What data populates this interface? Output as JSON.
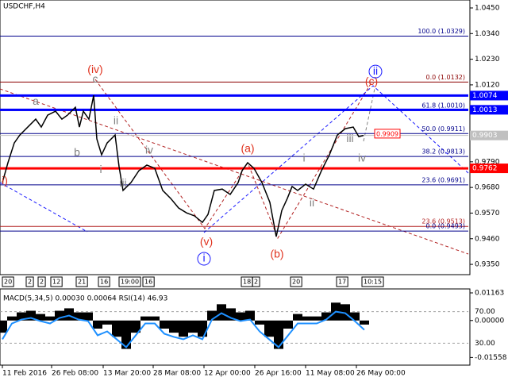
{
  "chart_data": [
    {
      "type": "line",
      "title": "USDCHF,H4",
      "x": [
        0,
        7,
        15,
        22,
        32,
        42,
        49,
        57,
        67,
        75,
        82,
        92,
        97,
        102,
        109,
        115,
        119,
        125,
        132,
        142,
        147,
        152,
        162,
        172,
        182,
        192,
        202,
        212,
        222,
        232,
        242,
        252,
        259,
        267,
        277,
        287,
        297,
        302,
        309,
        317,
        327,
        337,
        345,
        352,
        359,
        365,
        372,
        382,
        392,
        402,
        412,
        422,
        432,
        442,
        449,
        455
      ],
      "values": [
        0.9701,
        0.9786,
        0.9871,
        0.9905,
        0.9939,
        0.9973,
        0.9939,
        0.999,
        1.0007,
        0.9973,
        0.999,
        1.0024,
        0.9939,
        1.0007,
        0.9973,
        1.0075,
        0.9888,
        0.982,
        0.9871,
        0.9905,
        0.9769,
        0.9667,
        0.9701,
        0.9752,
        0.9776,
        0.9762,
        0.9667,
        0.9633,
        0.9592,
        0.9571,
        0.9558,
        0.953,
        0.9564,
        0.9667,
        0.9673,
        0.965,
        0.9701,
        0.9752,
        0.9786,
        0.9762,
        0.9701,
        0.9616,
        0.9469,
        0.9581,
        0.9633,
        0.9684,
        0.9667,
        0.9694,
        0.9673,
        0.9752,
        0.982,
        0.9905,
        0.9932,
        0.9939,
        0.9898,
        0.9903
      ],
      "color": "#000000",
      "xlim": [
        -3,
        587
      ],
      "ylim": [
        0.9306,
        1.0484
      ],
      "yticks": [
        {
          "value": 1.045,
          "label": "1.0450"
        },
        {
          "value": 1.034,
          "label": "1.0340"
        },
        {
          "value": 1.023,
          "label": "1.0230"
        },
        {
          "value": 1.012,
          "label": "1.0120"
        },
        {
          "value": 0.979,
          "label": "0.9790"
        },
        {
          "value": 0.968,
          "label": "0.9680"
        },
        {
          "value": 0.957,
          "label": "0.9570"
        },
        {
          "value": 0.946,
          "label": "0.9460"
        },
        {
          "value": 0.935,
          "label": "0.9350"
        }
      ],
      "levels": [
        {
          "value": 1.0329,
          "label": "100.0 (1.0329)",
          "color": "#00008b",
          "width": 1
        },
        {
          "value": 1.0132,
          "label": "0.0 (1.0132)",
          "color": "#8b0000",
          "width": 1
        },
        {
          "value": 1.001,
          "label": "61.8 (1.0010)",
          "color": "#00008b",
          "width": 1
        },
        {
          "value": 0.9911,
          "label": "50.0 (0.9911)",
          "color": "#00008b",
          "width": 1
        },
        {
          "value": 0.9813,
          "label": "38.2 (0.9813)",
          "color": "#00008b",
          "width": 1
        },
        {
          "value": 0.9691,
          "label": "23.6 (0.9691)",
          "color": "#00008b",
          "width": 1
        },
        {
          "value": 0.9513,
          "label": "23.6 (0.9513)",
          "color": "#b22222",
          "width": 1
        },
        {
          "value": 0.9493,
          "label": "0.0 (0.9493)",
          "color": "#00008b",
          "width": 1
        }
      ],
      "axis_levels": [
        {
          "value": 1.0074,
          "label": "1.0074",
          "color": "#0000ff",
          "width": 3
        },
        {
          "value": 1.0013,
          "label": "1.0013",
          "color": "#0000ff",
          "width": 3
        },
        {
          "value": 0.9762,
          "label": "0.9762",
          "color": "#ff0000",
          "width": 3
        }
      ],
      "bid": {
        "value": 0.9903,
        "label": "0.9903"
      },
      "ask": {
        "value": 0.9909,
        "label": "0.9909"
      },
      "annotations": [
        {
          "text": "i)",
          "x": 3,
          "y": 0.9707,
          "color": "#e0321e"
        },
        {
          "text": "a",
          "x": 42,
          "y": 1.0048,
          "color": "#808080"
        },
        {
          "text": "b",
          "x": 94,
          "y": 0.9827,
          "color": "#808080"
        },
        {
          "text": "(iv)",
          "x": 117,
          "y": 1.0184,
          "color": "#e0321e"
        },
        {
          "text": "c",
          "x": 117,
          "y": 1.0143,
          "color": "#808080"
        },
        {
          "text": "i",
          "x": 124,
          "y": 0.9755,
          "color": "#808080"
        },
        {
          "text": "ii",
          "x": 143,
          "y": 0.9963,
          "color": "#808080"
        },
        {
          "text": "iii",
          "x": 152,
          "y": 0.9697,
          "color": "#808080"
        },
        {
          "text": "iv",
          "x": 185,
          "y": 0.9837,
          "color": "#808080"
        },
        {
          "text": "(v)",
          "x": 257,
          "y": 0.9445,
          "color": "#e0321e"
        },
        {
          "text": "i",
          "x": 254,
          "y": 0.9374,
          "color": "#1a1aff",
          "circle": true
        },
        {
          "text": "(a)",
          "x": 309,
          "y": 0.9844,
          "color": "#e0321e"
        },
        {
          "text": "(b)",
          "x": 346,
          "y": 0.9391,
          "color": "#e0321e"
        },
        {
          "text": "i",
          "x": 380,
          "y": 0.9803,
          "color": "#808080"
        },
        {
          "text": "ii",
          "x": 390,
          "y": 0.9612,
          "color": "#808080"
        },
        {
          "text": "iii",
          "x": 438,
          "y": 0.9888,
          "color": "#808080"
        },
        {
          "text": "iv",
          "x": 453,
          "y": 0.9803,
          "color": "#808080"
        },
        {
          "text": "(c)",
          "x": 465,
          "y": 1.0133,
          "color": "#e0321e"
        },
        {
          "text": "ii",
          "x": 470,
          "y": 1.0177,
          "color": "#1a1aff",
          "circle": true
        }
      ],
      "period_labels": [
        "20",
        "2",
        "2",
        "12",
        "21",
        "16",
        "19:00",
        "16",
        "18",
        "2",
        "20",
        "17",
        "10:15"
      ]
    },
    {
      "type": "bar",
      "title": "MACD(5,34,5) 0.00030 0.00064 RSI(14) 46.93",
      "x": [
        0,
        12,
        24,
        36,
        48,
        60,
        72,
        84,
        96,
        108,
        120,
        132,
        144,
        156,
        168,
        180,
        192,
        204,
        216,
        228,
        240,
        252,
        264,
        276,
        288,
        300,
        312,
        324,
        336,
        348,
        360,
        372,
        384,
        396,
        408,
        420,
        432,
        444,
        456
      ],
      "values": [
        -0.00513,
        0.00171,
        0.00342,
        0.0041,
        0.00274,
        0.00171,
        0.0041,
        0.00513,
        0.00342,
        0.00342,
        -0.00342,
        -0.00171,
        -0.00684,
        -0.01197,
        -0.00513,
        0.00171,
        0.00171,
        -0.00342,
        -0.00513,
        -0.00684,
        -0.00513,
        -0.00684,
        0.0041,
        0.00684,
        0.00513,
        0.00342,
        0.0041,
        -0.00171,
        -0.00684,
        -0.01197,
        -0.00342,
        0.00274,
        0.00171,
        0.00171,
        0.00342,
        0.00752,
        0.00684,
        0.00342,
        -0.00171
      ],
      "color": "#000000",
      "series": [
        {
          "axis": "y2",
          "color": "#1e90ff",
          "values": [
            35,
            55,
            60,
            62,
            58,
            55,
            62,
            65,
            60,
            58,
            40,
            45,
            35,
            25,
            40,
            55,
            55,
            42,
            38,
            35,
            40,
            35,
            60,
            68,
            62,
            58,
            60,
            45,
            35,
            25,
            40,
            55,
            55,
            55,
            60,
            70,
            68,
            58,
            46.93
          ]
        }
      ],
      "xlim": [
        -3,
        587
      ],
      "ylim": [
        -0.0188,
        0.0133
      ],
      "yticks": [
        0.01163,
        {
          "value": 0,
          "label": "0.00000"
        },
        -0.01558
      ],
      "y2lim": [
        2.3,
        98.7
      ],
      "y2ticks": [
        {
          "value": 70,
          "label": "70.00"
        },
        {
          "value": 30,
          "label": "30.00"
        }
      ],
      "xticks": [
        {
          "value": 0,
          "label": "11 Feb 2016"
        },
        {
          "value": 62,
          "label": "26 Feb 08:00"
        },
        {
          "value": 127,
          "label": "13 Mar 20:00"
        },
        {
          "value": 190,
          "label": "28 Mar 08:00"
        },
        {
          "value": 254,
          "label": "12 Apr 00:00"
        },
        {
          "value": 318,
          "label": "26 Apr 16:00"
        },
        {
          "value": 382,
          "label": "11 May 08:00"
        },
        {
          "value": 446,
          "label": "26 May 00:00"
        }
      ]
    }
  ]
}
